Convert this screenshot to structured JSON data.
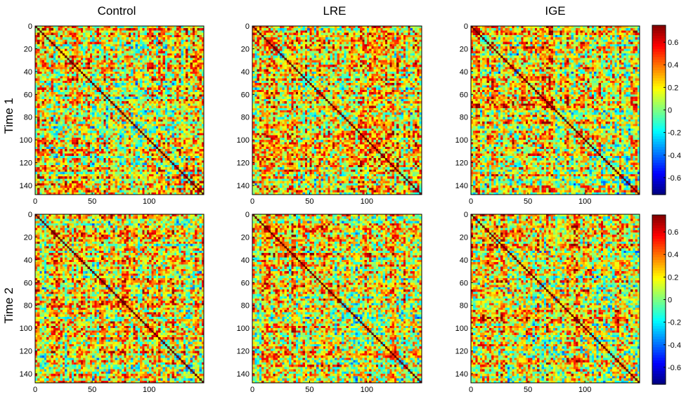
{
  "columns": [
    "Control",
    "LRE",
    "IGE"
  ],
  "rows": [
    "Time 1",
    "Time 2"
  ],
  "chart_data": [
    {
      "type": "heatmap",
      "panel": "Control / Time 1",
      "n": 148,
      "xticks": [
        0,
        50,
        100
      ],
      "yticks": [
        0,
        20,
        40,
        60,
        80,
        100,
        120,
        140
      ],
      "diagonal": 1.0
    },
    {
      "type": "heatmap",
      "panel": "LRE / Time 1",
      "n": 148,
      "xticks": [
        0,
        50,
        100
      ],
      "yticks": [
        0,
        20,
        40,
        60,
        80,
        100,
        120,
        140
      ],
      "diagonal": 1.0
    },
    {
      "type": "heatmap",
      "panel": "IGE / Time 1",
      "n": 148,
      "xticks": [
        0,
        50,
        100
      ],
      "yticks": [
        0,
        20,
        40,
        60,
        80,
        100,
        120,
        140
      ],
      "diagonal": 1.0
    },
    {
      "type": "heatmap",
      "panel": "Control / Time 2",
      "n": 148,
      "xticks": [
        0,
        50,
        100
      ],
      "yticks": [
        0,
        20,
        40,
        60,
        80,
        100,
        120,
        140
      ],
      "diagonal": 1.0
    },
    {
      "type": "heatmap",
      "panel": "LRE / Time 2",
      "n": 148,
      "xticks": [
        0,
        50,
        100
      ],
      "yticks": [
        0,
        20,
        40,
        60,
        80,
        100,
        120,
        140
      ],
      "diagonal": 1.0
    },
    {
      "type": "heatmap",
      "panel": "IGE / Time 2",
      "n": 148,
      "xticks": [
        0,
        50,
        100
      ],
      "yticks": [
        0,
        20,
        40,
        60,
        80,
        100,
        120,
        140
      ],
      "diagonal": 1.0
    }
  ],
  "colorbar": {
    "colormap": "jet",
    "range": [
      -0.75,
      0.75
    ],
    "ticks": [
      "0.6",
      "0.4",
      "0.2",
      "0",
      "-0.2",
      "-0.4",
      "-0.6"
    ],
    "tick_values": [
      0.6,
      0.4,
      0.2,
      0,
      -0.2,
      -0.4,
      -0.6
    ]
  }
}
